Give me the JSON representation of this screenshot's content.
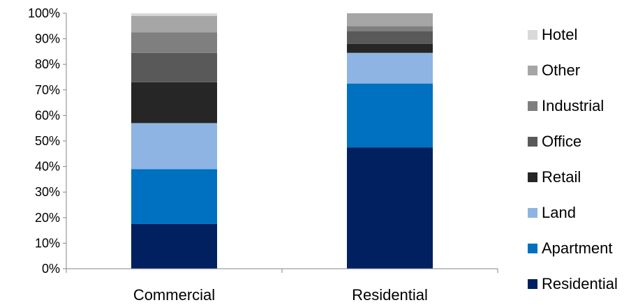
{
  "chart_data": {
    "type": "bar",
    "stacked": true,
    "percent": true,
    "categories": [
      "Commercial",
      "Residential"
    ],
    "series": [
      {
        "name": "Residential",
        "color": "#002060",
        "values": [
          17.5,
          47.5
        ]
      },
      {
        "name": "Apartment",
        "color": "#0070C0",
        "values": [
          21.5,
          25.0
        ]
      },
      {
        "name": "Land",
        "color": "#8DB4E2",
        "values": [
          18.0,
          12.0
        ]
      },
      {
        "name": "Retail",
        "color": "#262626",
        "values": [
          16.0,
          3.5
        ]
      },
      {
        "name": "Office",
        "color": "#595959",
        "values": [
          11.5,
          5.0
        ]
      },
      {
        "name": "Industrial",
        "color": "#7F7F7F",
        "values": [
          8.0,
          2.0
        ]
      },
      {
        "name": "Other",
        "color": "#A6A6A6",
        "values": [
          6.5,
          5.0
        ]
      },
      {
        "name": "Hotel",
        "color": "#D9D9D9",
        "values": [
          1.0,
          0.0
        ]
      }
    ],
    "yticks": [
      "0%",
      "10%",
      "20%",
      "30%",
      "40%",
      "50%",
      "60%",
      "70%",
      "80%",
      "90%",
      "100%"
    ],
    "ylim": [
      0,
      100
    ],
    "grid": false,
    "legend_position": "right"
  }
}
